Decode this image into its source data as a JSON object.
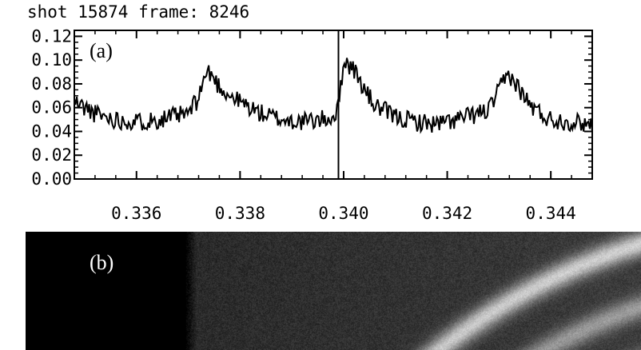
{
  "title": "shot 15874 frame: 8246",
  "panel_labels": {
    "a": "(a)",
    "b": "(b)"
  },
  "chart_data": {
    "type": "line",
    "title": "shot 15874 frame: 8246",
    "xlabel": "",
    "ylabel": "",
    "xlim": [
      0.3348,
      0.3448
    ],
    "ylim": [
      0.0,
      0.125
    ],
    "x_tick_values": [
      0.336,
      0.338,
      0.34,
      0.342,
      0.344
    ],
    "x_tick_labels": [
      "0.336",
      "0.338",
      "0.340",
      "0.342",
      "0.344"
    ],
    "y_tick_values": [
      0.0,
      0.02,
      0.04,
      0.06,
      0.08,
      0.1,
      0.12
    ],
    "y_tick_labels": [
      "0.00",
      "0.02",
      "0.04",
      "0.06",
      "0.08",
      "0.10",
      "0.12"
    ],
    "vertical_marker_x": 0.3399,
    "series": [
      {
        "x": [
          0.3348,
          0.3352,
          0.3356,
          0.336,
          0.3364,
          0.3368,
          0.337,
          0.3372,
          0.3373,
          0.3374,
          0.3376,
          0.3378,
          0.338,
          0.3384,
          0.3388,
          0.3392,
          0.3396,
          0.3398,
          0.3399,
          0.34,
          0.3402,
          0.3404,
          0.3406,
          0.341,
          0.3414,
          0.3418,
          0.3422,
          0.3426,
          0.3428,
          0.343,
          0.3431,
          0.3432,
          0.3434,
          0.3436,
          0.3438,
          0.344,
          0.3444,
          0.3448
        ],
        "y": [
          0.065,
          0.055,
          0.05,
          0.048,
          0.05,
          0.053,
          0.055,
          0.068,
          0.085,
          0.09,
          0.078,
          0.07,
          0.065,
          0.055,
          0.05,
          0.048,
          0.05,
          0.052,
          0.06,
          0.1,
          0.092,
          0.075,
          0.062,
          0.052,
          0.048,
          0.046,
          0.05,
          0.055,
          0.058,
          0.074,
          0.083,
          0.088,
          0.075,
          0.062,
          0.055,
          0.05,
          0.048,
          0.046
        ]
      }
    ]
  }
}
